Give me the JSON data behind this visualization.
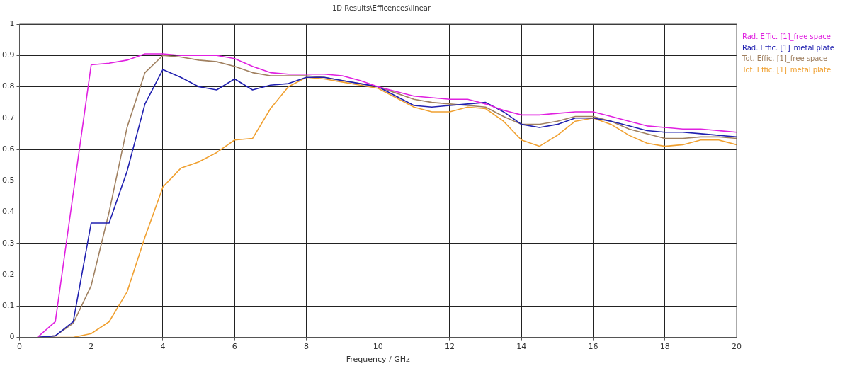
{
  "chart_data": {
    "type": "line",
    "title": "1D Results\\Efficences\\linear",
    "xlabel": "Frequency / GHz",
    "x": [
      0.5,
      1,
      1.5,
      2,
      2.5,
      3,
      3.5,
      4,
      4.5,
      5,
      5.5,
      6,
      6.5,
      7,
      7.5,
      8,
      8.5,
      9,
      9.5,
      10,
      10.5,
      11,
      11.5,
      12,
      12.5,
      13,
      13.5,
      14,
      14.5,
      15,
      15.5,
      16,
      16.5,
      17,
      17.5,
      18,
      18.5,
      19,
      19.5,
      20
    ],
    "series": [
      {
        "name": "Rad. Effic. [1]_free space",
        "color": "#e020e0",
        "values": [
          0,
          0.05,
          0.46,
          0.87,
          0.875,
          0.885,
          0.905,
          0.905,
          0.9,
          0.9,
          0.9,
          0.89,
          0.865,
          0.845,
          0.84,
          0.84,
          0.84,
          0.835,
          0.82,
          0.8,
          0.785,
          0.77,
          0.765,
          0.76,
          0.76,
          0.745,
          0.725,
          0.71,
          0.71,
          0.715,
          0.72,
          0.72,
          0.705,
          0.69,
          0.675,
          0.67,
          0.665,
          0.665,
          0.66,
          0.655
        ]
      },
      {
        "name": "Rad. Effic. [1]_metal plate",
        "color": "#2020b0",
        "values": [
          0,
          0.005,
          0.05,
          0.365,
          0.365,
          0.53,
          0.745,
          0.855,
          0.83,
          0.8,
          0.79,
          0.825,
          0.79,
          0.805,
          0.81,
          0.83,
          0.83,
          0.82,
          0.81,
          0.8,
          0.77,
          0.74,
          0.735,
          0.74,
          0.745,
          0.75,
          0.72,
          0.68,
          0.67,
          0.68,
          0.7,
          0.7,
          0.69,
          0.675,
          0.66,
          0.655,
          0.655,
          0.65,
          0.645,
          0.64
        ]
      },
      {
        "name": "Tot. Effic. [1]_free space",
        "color": "#a08060",
        "values": [
          0,
          0.005,
          0.045,
          0.165,
          0.4,
          0.67,
          0.845,
          0.9,
          0.895,
          0.885,
          0.88,
          0.865,
          0.845,
          0.835,
          0.835,
          0.835,
          0.83,
          0.82,
          0.81,
          0.8,
          0.78,
          0.76,
          0.75,
          0.745,
          0.74,
          0.735,
          0.705,
          0.68,
          0.68,
          0.69,
          0.705,
          0.705,
          0.69,
          0.665,
          0.65,
          0.635,
          0.635,
          0.64,
          0.64,
          0.635
        ]
      },
      {
        "name": "Tot. Effic. [1]_metal plate",
        "color": "#f0a030",
        "values": [
          0,
          0,
          0,
          0.012,
          0.05,
          0.145,
          0.32,
          0.48,
          0.54,
          0.56,
          0.59,
          0.63,
          0.635,
          0.73,
          0.8,
          0.83,
          0.825,
          0.815,
          0.805,
          0.795,
          0.765,
          0.735,
          0.72,
          0.72,
          0.735,
          0.73,
          0.69,
          0.63,
          0.61,
          0.645,
          0.69,
          0.7,
          0.68,
          0.645,
          0.62,
          0.61,
          0.615,
          0.63,
          0.63,
          0.615
        ]
      }
    ],
    "xlim": [
      0,
      20
    ],
    "xticks": [
      0,
      2,
      4,
      6,
      8,
      10,
      12,
      14,
      16,
      18,
      20
    ],
    "ylim": [
      0,
      1
    ],
    "yticks": [
      0,
      0.1,
      0.2,
      0.3,
      0.4,
      0.5,
      0.6,
      0.7,
      0.8,
      0.9,
      1
    ],
    "grid": true,
    "legend": "top right",
    "marker": "none",
    "line_style": "solid"
  }
}
